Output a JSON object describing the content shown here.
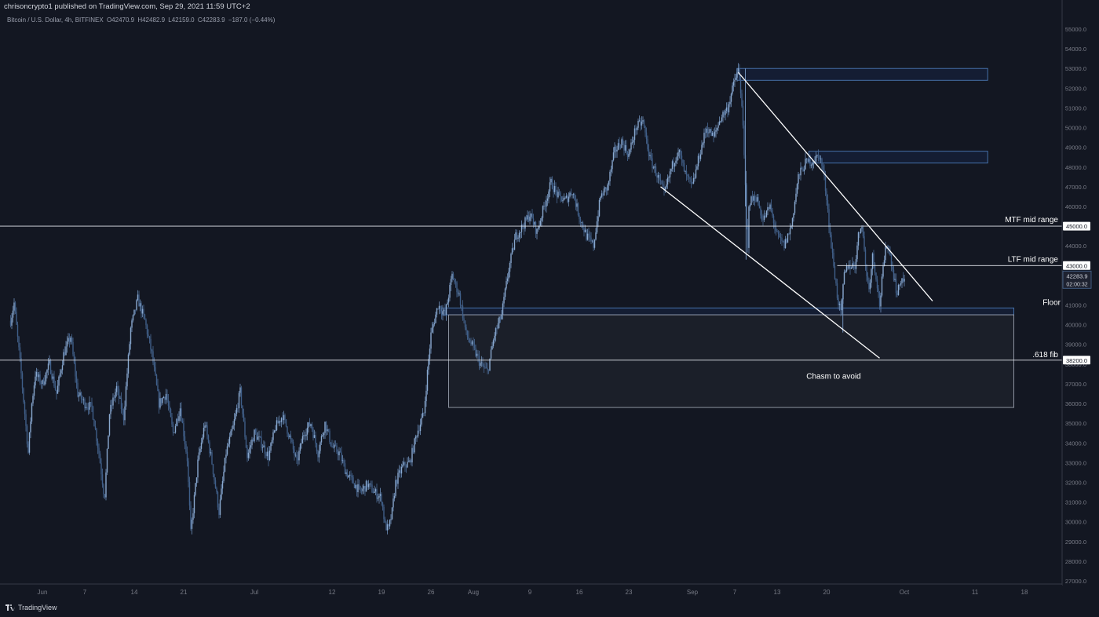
{
  "header": {
    "published": "chrisoncrypto1 published on TradingView.com, Sep 29, 2021 11:59 UTC+2",
    "symbol": "Bitcoin / U.S. Dollar, 4h, BITFINEX",
    "open": "O42470.9",
    "high": "H42482.9",
    "low": "L42159.0",
    "close": "C42283.9",
    "change": "−187.0 (−0.44%)"
  },
  "footer": {
    "brand": "TradingView"
  },
  "chart_data": {
    "type": "candlestick",
    "symbol": "BTCUSD",
    "timeframe": "4h",
    "exchange": "BITFINEX",
    "y_axis": {
      "ylim": [
        26800,
        55700
      ],
      "ticks": [
        27000,
        28000,
        29000,
        30000,
        31000,
        32000,
        33000,
        34000,
        35000,
        36000,
        37000,
        38000,
        39000,
        40000,
        41000,
        42000,
        43000,
        44000,
        45000,
        46000,
        47000,
        48000,
        49000,
        50000,
        51000,
        52000,
        53000,
        54000,
        55000
      ],
      "tick_labels": [
        "27000.0",
        "28000.0",
        "29000.0",
        "30000.0",
        "31000.0",
        "32000.0",
        "33000.0",
        "34000.0",
        "35000.0",
        "36000.0",
        "37000.0",
        "38000.0",
        "39000.0",
        "40000.0",
        "41000.0",
        "42000.0",
        "43000.0",
        "44000.0",
        "45000.0",
        "46000.0",
        "47000.0",
        "48000.0",
        "49000.0",
        "50000.0",
        "51000.0",
        "52000.0",
        "53000.0",
        "54000.0",
        "55000.0"
      ]
    },
    "x_axis": {
      "ticks": [
        {
          "day": 0,
          "label": "Jun"
        },
        {
          "day": 6,
          "label": "7"
        },
        {
          "day": 13,
          "label": "14"
        },
        {
          "day": 20,
          "label": "21"
        },
        {
          "day": 30,
          "label": "Jul"
        },
        {
          "day": 41,
          "label": "12"
        },
        {
          "day": 48,
          "label": "19"
        },
        {
          "day": 55,
          "label": "26"
        },
        {
          "day": 61,
          "label": "Aug"
        },
        {
          "day": 69,
          "label": "9"
        },
        {
          "day": 76,
          "label": "16"
        },
        {
          "day": 83,
          "label": "23"
        },
        {
          "day": 92,
          "label": "Sep"
        },
        {
          "day": 98,
          "label": "7"
        },
        {
          "day": 104,
          "label": "13"
        },
        {
          "day": 111,
          "label": "20"
        },
        {
          "day": 122,
          "label": "Oct"
        },
        {
          "day": 132,
          "label": "11"
        },
        {
          "day": 139,
          "label": "18"
        }
      ]
    },
    "price_path": [
      [
        -4.5,
        40200
      ],
      [
        -4,
        41100
      ],
      [
        -3,
        37500
      ],
      [
        -2,
        33500
      ],
      [
        -1.5,
        36000
      ],
      [
        -1,
        37500
      ],
      [
        0,
        37000
      ],
      [
        1,
        38000
      ],
      [
        2,
        36500
      ],
      [
        3,
        38500
      ],
      [
        4,
        39400
      ],
      [
        5,
        36500
      ],
      [
        6,
        36000
      ],
      [
        7,
        35800
      ],
      [
        8,
        33500
      ],
      [
        8.8,
        31200
      ],
      [
        9.5,
        35500
      ],
      [
        10.5,
        36800
      ],
      [
        11.5,
        35300
      ],
      [
        12.5,
        39800
      ],
      [
        13.5,
        41300
      ],
      [
        14.5,
        40200
      ],
      [
        15.5,
        38500
      ],
      [
        16.5,
        36000
      ],
      [
        17.5,
        36500
      ],
      [
        18.5,
        34500
      ],
      [
        19.5,
        35800
      ],
      [
        20.5,
        33200
      ],
      [
        21,
        29400
      ],
      [
        22,
        33000
      ],
      [
        23,
        35000
      ],
      [
        24,
        33000
      ],
      [
        25,
        30500
      ],
      [
        26,
        33500
      ],
      [
        27,
        34800
      ],
      [
        28,
        36600
      ],
      [
        29,
        33300
      ],
      [
        30,
        34500
      ],
      [
        31,
        34000
      ],
      [
        32,
        33300
      ],
      [
        33,
        34800
      ],
      [
        34,
        35400
      ],
      [
        35,
        34300
      ],
      [
        36,
        33000
      ],
      [
        37,
        34500
      ],
      [
        38,
        35000
      ],
      [
        39,
        33500
      ],
      [
        40,
        35000
      ],
      [
        41,
        33800
      ],
      [
        42,
        33500
      ],
      [
        43,
        32500
      ],
      [
        44,
        32000
      ],
      [
        45,
        31500
      ],
      [
        46,
        31900
      ],
      [
        47,
        31500
      ],
      [
        48,
        31200
      ],
      [
        48.5,
        29800
      ],
      [
        49,
        29600
      ],
      [
        49.5,
        30500
      ],
      [
        50,
        32000
      ],
      [
        51,
        32800
      ],
      [
        52,
        33000
      ],
      [
        53,
        34500
      ],
      [
        54,
        35500
      ],
      [
        54.6,
        38000
      ],
      [
        55,
        39500
      ],
      [
        56,
        41000
      ],
      [
        57,
        40500
      ],
      [
        58,
        42500
      ],
      [
        59,
        41500
      ],
      [
        60,
        39500
      ],
      [
        61,
        38800
      ],
      [
        62,
        38000
      ],
      [
        63,
        37600
      ],
      [
        64,
        39500
      ],
      [
        65,
        40500
      ],
      [
        66,
        42800
      ],
      [
        67,
        44500
      ],
      [
        68,
        45000
      ],
      [
        69,
        45600
      ],
      [
        70,
        44700
      ],
      [
        71,
        46000
      ],
      [
        72,
        47200
      ],
      [
        73,
        46500
      ],
      [
        74,
        46300
      ],
      [
        75,
        46800
      ],
      [
        76,
        45500
      ],
      [
        77,
        44500
      ],
      [
        78,
        44000
      ],
      [
        79,
        46500
      ],
      [
        80,
        47000
      ],
      [
        81,
        48800
      ],
      [
        82,
        49300
      ],
      [
        83,
        48600
      ],
      [
        84,
        50000
      ],
      [
        85,
        50300
      ],
      [
        86,
        48400
      ],
      [
        87,
        47600
      ],
      [
        88,
        46600
      ],
      [
        89,
        47900
      ],
      [
        90,
        48900
      ],
      [
        91,
        47600
      ],
      [
        92,
        47000
      ],
      [
        93,
        48600
      ],
      [
        94,
        50000
      ],
      [
        95,
        49500
      ],
      [
        96,
        50500
      ],
      [
        97,
        51000
      ],
      [
        98,
        52400
      ],
      [
        98.5,
        52900
      ],
      [
        99,
        51300
      ],
      [
        99.5,
        47000
      ],
      [
        99.8,
        43300
      ],
      [
        100,
        46200
      ],
      [
        101,
        46500
      ],
      [
        102,
        45300
      ],
      [
        103,
        46000
      ],
      [
        104,
        44500
      ],
      [
        105,
        44000
      ],
      [
        106,
        45000
      ],
      [
        107,
        47500
      ],
      [
        108,
        48200
      ],
      [
        109,
        48300
      ],
      [
        110,
        48600
      ],
      [
        110.5,
        47800
      ],
      [
        111,
        46500
      ],
      [
        111.5,
        44500
      ],
      [
        112,
        43000
      ],
      [
        112.5,
        41500
      ],
      [
        113,
        40500
      ],
      [
        113.5,
        42500
      ],
      [
        114,
        43000
      ],
      [
        115,
        43000
      ],
      [
        115.5,
        44500
      ],
      [
        116,
        45200
      ],
      [
        116.5,
        43000
      ],
      [
        117,
        41800
      ],
      [
        117.5,
        43500
      ],
      [
        118,
        42500
      ],
      [
        118.5,
        41000
      ],
      [
        119,
        42800
      ],
      [
        119.5,
        44200
      ],
      [
        120,
        43500
      ],
      [
        120.5,
        42500
      ],
      [
        121,
        41500
      ],
      [
        121.5,
        42300
      ],
      [
        122,
        42283.9
      ]
    ],
    "horizontal_levels": [
      {
        "price": 45000,
        "label": "MTF mid range",
        "tag": "45000.0"
      },
      {
        "price": 43000,
        "label": "LTF mid range",
        "tag": "43000.0"
      },
      {
        "price": 40900,
        "label": "Floor"
      },
      {
        "price": 38200,
        "label": ".618 fib",
        "tag": "38200.0"
      }
    ],
    "current_price": {
      "label": "42283.9",
      "countdown": "02:00:32"
    },
    "zones": [
      {
        "name": "supply-zone-top",
        "from_day": 98.3,
        "to_day": 133.8,
        "low": 52400,
        "high": 53000
      },
      {
        "name": "supply-zone-mid",
        "from_day": 108.5,
        "to_day": 133.8,
        "low": 48200,
        "high": 48800
      },
      {
        "name": "floor-zone",
        "from_day": 56.5,
        "to_day": 137.5,
        "low": 40500,
        "high": 40850
      },
      {
        "name": "chasm-zone",
        "from_day": 57.5,
        "to_day": 137.5,
        "low": 35800,
        "high": 40500
      }
    ],
    "annotations": [
      {
        "text": "Chasm to avoid",
        "day": 112,
        "price": 37250
      }
    ],
    "trendlines": [
      {
        "name": "resistance-trendline",
        "from": [
          98.5,
          52800
        ],
        "to": [
          126,
          41200
        ]
      },
      {
        "name": "support-trendline",
        "from": [
          87.5,
          47000
        ],
        "to": [
          118.5,
          38300
        ]
      }
    ]
  }
}
